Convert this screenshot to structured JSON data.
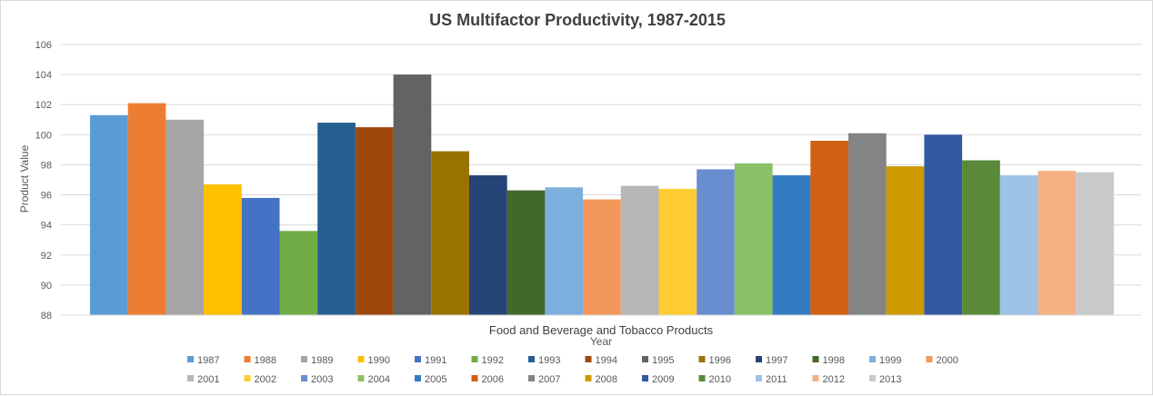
{
  "chart_data": {
    "type": "bar",
    "title": "US Multifactor Productivity, 1987-2015",
    "xlabel": "Year",
    "ylabel": "Product Value",
    "categories": [
      "Food and Beverage and Tobacco Products"
    ],
    "ylim": [
      88,
      106
    ],
    "yticks": [
      "88",
      "90",
      "92",
      "94",
      "96",
      "98",
      "100",
      "102",
      "104",
      "106"
    ],
    "grid": true,
    "legend_position": "bottom",
    "series": [
      {
        "name": "1987",
        "values": [
          101.3
        ],
        "color": "#5B9BD5"
      },
      {
        "name": "1988",
        "values": [
          102.1
        ],
        "color": "#ED7D31"
      },
      {
        "name": "1989",
        "values": [
          101.0
        ],
        "color": "#A5A5A5"
      },
      {
        "name": "1990",
        "values": [
          96.7
        ],
        "color": "#FFC000"
      },
      {
        "name": "1991",
        "values": [
          95.8
        ],
        "color": "#4472C4"
      },
      {
        "name": "1992",
        "values": [
          93.6
        ],
        "color": "#70AD47"
      },
      {
        "name": "1993",
        "values": [
          100.8
        ],
        "color": "#255E91"
      },
      {
        "name": "1994",
        "values": [
          100.5
        ],
        "color": "#9E480E"
      },
      {
        "name": "1995",
        "values": [
          104.0
        ],
        "color": "#636363"
      },
      {
        "name": "1996",
        "values": [
          98.9
        ],
        "color": "#997300"
      },
      {
        "name": "1997",
        "values": [
          97.3
        ],
        "color": "#264478"
      },
      {
        "name": "1998",
        "values": [
          96.3
        ],
        "color": "#43682B"
      },
      {
        "name": "1999",
        "values": [
          96.5
        ],
        "color": "#7CAFDD"
      },
      {
        "name": "2000",
        "values": [
          95.7
        ],
        "color": "#F1975A"
      },
      {
        "name": "2001",
        "values": [
          96.6
        ],
        "color": "#B7B7B7"
      },
      {
        "name": "2002",
        "values": [
          96.4
        ],
        "color": "#FFCD33"
      },
      {
        "name": "2003",
        "values": [
          97.7
        ],
        "color": "#698ED0"
      },
      {
        "name": "2004",
        "values": [
          98.1
        ],
        "color": "#8CC168"
      },
      {
        "name": "2005",
        "values": [
          97.3
        ],
        "color": "#327DC2"
      },
      {
        "name": "2006",
        "values": [
          99.6
        ],
        "color": "#D26012"
      },
      {
        "name": "2007",
        "values": [
          100.1
        ],
        "color": "#848484"
      },
      {
        "name": "2008",
        "values": [
          97.9
        ],
        "color": "#CC9A00"
      },
      {
        "name": "2009",
        "values": [
          100.0
        ],
        "color": "#335AA1"
      },
      {
        "name": "2010",
        "values": [
          98.3
        ],
        "color": "#5A8A39"
      },
      {
        "name": "2011",
        "values": [
          97.3
        ],
        "color": "#9DC3E6"
      },
      {
        "name": "2012",
        "values": [
          97.6
        ],
        "color": "#F4B183"
      },
      {
        "name": "2013",
        "values": [
          97.5
        ],
        "color": "#C9C9C9"
      }
    ]
  }
}
